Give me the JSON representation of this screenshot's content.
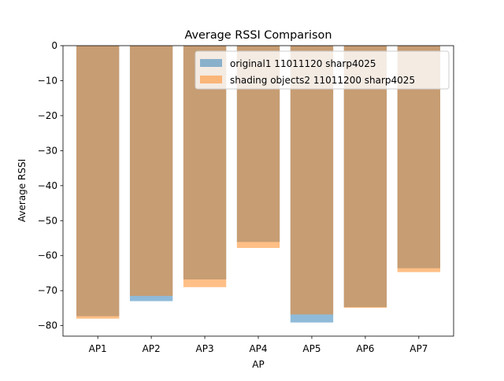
{
  "chart_data": {
    "type": "bar",
    "title": "Average RSSI Comparison",
    "xlabel": "AP",
    "ylabel": "Average RSSI",
    "categories": [
      "AP1",
      "AP2",
      "AP3",
      "AP4",
      "AP5",
      "AP6",
      "AP7"
    ],
    "ylim": [
      -83,
      0
    ],
    "yticks": [
      0,
      -10,
      -20,
      -30,
      -40,
      -50,
      -60,
      -70,
      -80
    ],
    "ytick_labels": [
      "0",
      "−10",
      "−20",
      "−30",
      "−40",
      "−50",
      "−60",
      "−70",
      "−80"
    ],
    "grid": false,
    "legend_position": "top-right",
    "overlap_color": "#c69c72",
    "series": [
      {
        "name": "original1 11011120 sharp4025",
        "values": [
          -77.3,
          -73.0,
          -66.8,
          -56.1,
          -79.1,
          -74.7,
          -63.6
        ],
        "color": "#1f77b4",
        "alpha": 0.5
      },
      {
        "name": "shading objects2 11011200 sharp4025",
        "values": [
          -78.0,
          -71.5,
          -69.0,
          -57.8,
          -76.8,
          -74.9,
          -64.7
        ],
        "color": "#ff7f0e",
        "alpha": 0.5
      }
    ]
  }
}
